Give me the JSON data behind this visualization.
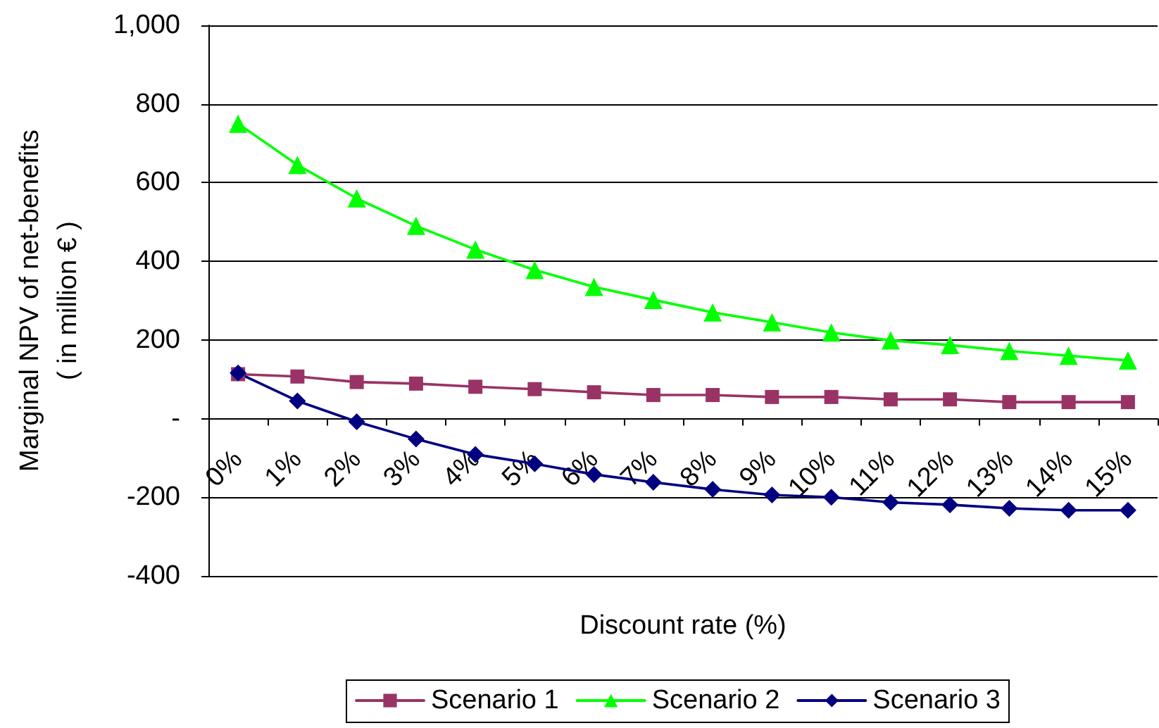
{
  "chart_data": {
    "type": "line",
    "xlabel": "Discount rate (%)",
    "ylabel": "Marginal NPV of net-benefits\n( in million € )",
    "categories": [
      "0%",
      "1%",
      "2%",
      "3%",
      "4%",
      "5%",
      "6%",
      "7%",
      "8%",
      "9%",
      "10%",
      "11%",
      "12%",
      "13%",
      "14%",
      "15%"
    ],
    "series": [
      {
        "name": "Scenario 1",
        "color": "#993366",
        "marker": "square",
        "values": [
          113,
          107,
          93,
          89,
          81,
          75,
          67,
          60,
          60,
          55,
          55,
          49,
          49,
          42,
          42,
          42
        ]
      },
      {
        "name": "Scenario 2",
        "color": "#00ff00",
        "marker": "triangle",
        "values": [
          750,
          645,
          560,
          490,
          430,
          378,
          335,
          302,
          270,
          245,
          219,
          199,
          187,
          172,
          160,
          148
        ]
      },
      {
        "name": "Scenario 3",
        "color": "#000080",
        "marker": "diamond",
        "values": [
          116,
          45,
          -8,
          -52,
          -91,
          -115,
          -142,
          -162,
          -180,
          -194,
          -200,
          -213,
          -219,
          -228,
          -233,
          -233
        ]
      }
    ],
    "ylim": [
      -400,
      1000
    ],
    "yticks": [
      -400,
      -200,
      {
        "value": 0,
        "label": "-"
      },
      200,
      400,
      600,
      800,
      {
        "value": 1000,
        "label": "1,000"
      }
    ],
    "grid": "y",
    "legend": "bottom"
  }
}
